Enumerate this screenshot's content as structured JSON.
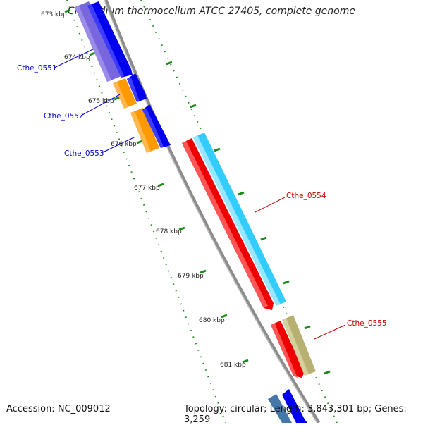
{
  "title": "Clostridium thermocellum ATCC 27405, complete genome",
  "accession": "Accession: NC_009012",
  "topology": "Topology: circular; Length: 3,843,301 bp; Genes: 3,259",
  "ticks": [
    "673 kbp",
    "674 kbp",
    "675 kbp",
    "676 kbp",
    "677 kbp",
    "678 kbp",
    "679 kbp",
    "680 kbp",
    "681 kbp"
  ],
  "genes": [
    {
      "label": "Cthe_0551",
      "color": "#0000cc"
    },
    {
      "label": "Cthe_0552",
      "color": "#0000cc"
    },
    {
      "label": "Cthe_0553",
      "color": "#0000cc"
    },
    {
      "label": "Cthe_0554",
      "color": "#cc0000"
    },
    {
      "label": "Cthe_0555",
      "color": "#cc0000"
    }
  ],
  "colors": {
    "backbone": "#8c8c8c",
    "tick_dots": "#1a8a1a",
    "cds_red": "#ee0000",
    "cds_cyan": "#33ccff",
    "cds_blue": "#0000ee",
    "cds_orange": "#ff9900",
    "cds_purple": "#7766dd",
    "cds_olive": "#b8b070",
    "cds_steel": "#4477aa"
  }
}
